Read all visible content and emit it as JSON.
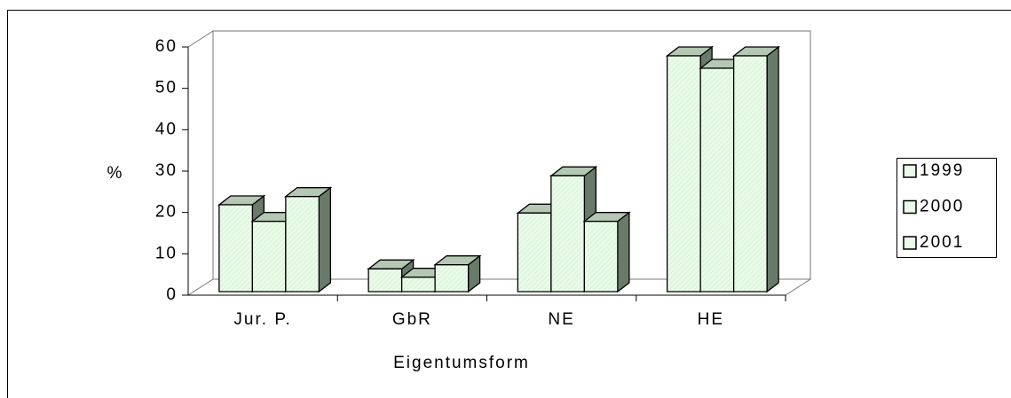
{
  "chart_data": {
    "type": "bar3d",
    "x_label": "Eigentumsform",
    "y_label": "%",
    "categories": [
      "Jur. P.",
      "GbR",
      "NE",
      "HE"
    ],
    "series": [
      {
        "name": "1999",
        "color": "#e8fce8",
        "values": [
          21,
          5.5,
          19,
          57
        ]
      },
      {
        "name": "2000",
        "color": "#e8fce8",
        "values": [
          17,
          3.5,
          28,
          54
        ]
      },
      {
        "name": "2001",
        "color": "#e8fce8",
        "values": [
          23,
          6.5,
          17,
          57
        ]
      }
    ],
    "ylim": [
      0,
      60
    ],
    "yticks": [
      0,
      10,
      20,
      30,
      40,
      50,
      60
    ],
    "legend": "right"
  }
}
